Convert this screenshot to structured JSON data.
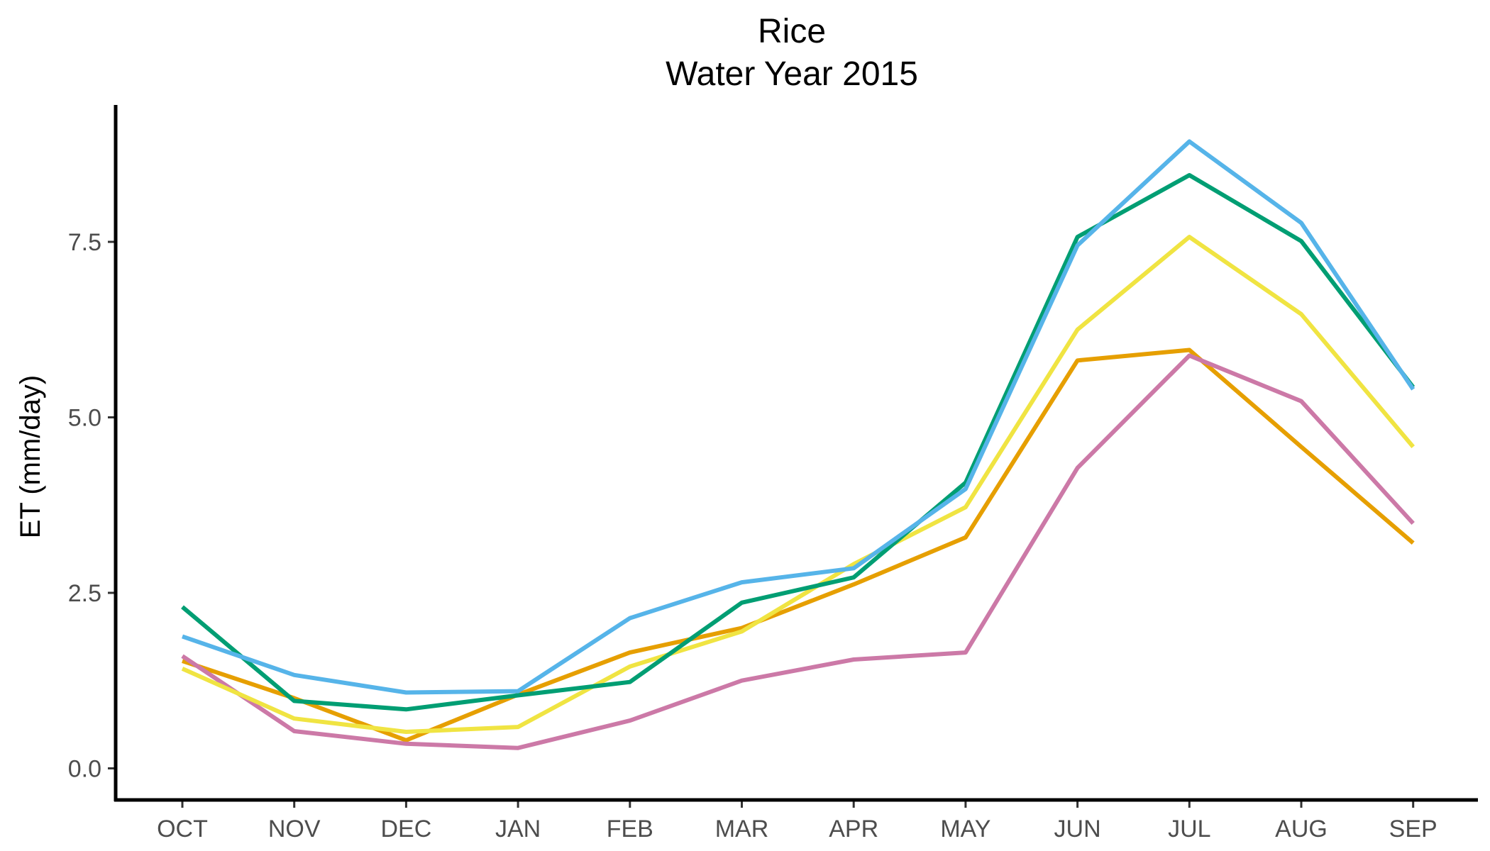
{
  "chart_data": {
    "type": "line",
    "title": "Rice",
    "subtitle": "Water Year 2015",
    "xlabel": "",
    "ylabel": "ET (mm/day)",
    "ylim": [
      -0.45,
      9.45
    ],
    "yticks": [
      0.0,
      2.5,
      5.0,
      7.5
    ],
    "ytick_labels": [
      "0.0",
      "2.5",
      "5.0",
      "7.5"
    ],
    "grid": false,
    "legend": "none",
    "categories": [
      "OCT",
      "NOV",
      "DEC",
      "JAN",
      "FEB",
      "MAR",
      "APR",
      "MAY",
      "JUN",
      "JUL",
      "AUG",
      "SEP"
    ],
    "series": [
      {
        "color": "#E69F00",
        "values": [
          1.53,
          1.0,
          0.4,
          1.05,
          1.65,
          2.0,
          2.62,
          3.29,
          5.81,
          5.96,
          4.58,
          3.21
        ]
      },
      {
        "color": "#CC79A7",
        "values": [
          1.6,
          0.53,
          0.35,
          0.29,
          0.68,
          1.25,
          1.55,
          1.65,
          4.28,
          5.88,
          5.23,
          3.49
        ]
      },
      {
        "color": "#F0E442",
        "values": [
          1.42,
          0.71,
          0.52,
          0.59,
          1.45,
          1.95,
          2.91,
          3.72,
          6.25,
          7.57,
          6.47,
          4.58
        ]
      },
      {
        "color": "#009E73",
        "values": [
          2.3,
          0.96,
          0.84,
          1.04,
          1.23,
          2.36,
          2.72,
          4.07,
          7.57,
          8.45,
          7.51,
          5.43
        ]
      },
      {
        "color": "#56B4E9",
        "values": [
          1.88,
          1.33,
          1.08,
          1.1,
          2.14,
          2.65,
          2.85,
          3.98,
          7.45,
          8.93,
          7.77,
          5.4
        ]
      }
    ]
  }
}
